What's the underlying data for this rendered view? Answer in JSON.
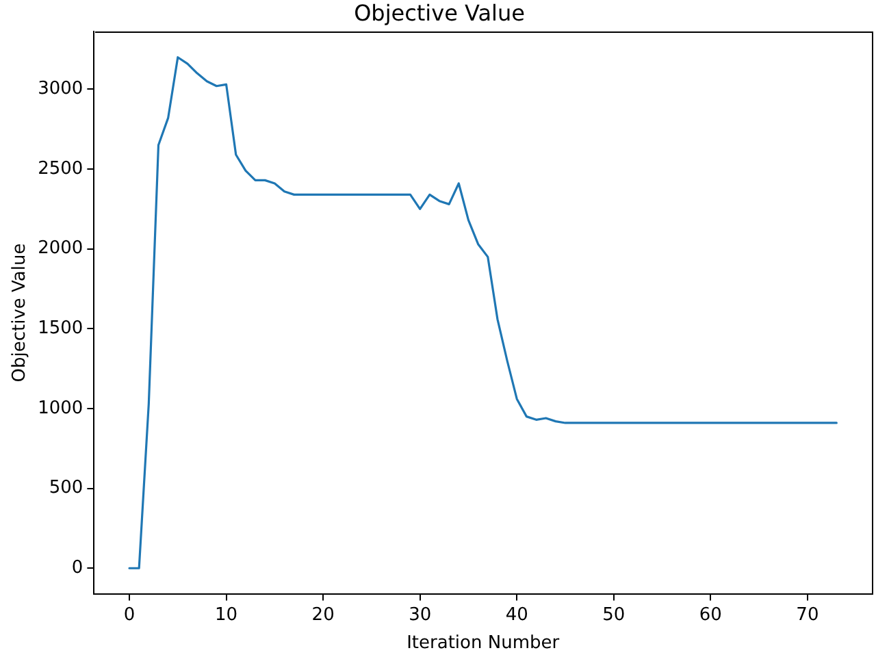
{
  "chart_data": {
    "type": "line",
    "title": "Objective Value",
    "xlabel": "Iteration Number",
    "ylabel": "Objective Value",
    "x": [
      0,
      1,
      2,
      3,
      4,
      5,
      6,
      7,
      8,
      9,
      10,
      11,
      12,
      13,
      14,
      15,
      16,
      17,
      18,
      19,
      20,
      21,
      22,
      23,
      24,
      25,
      26,
      27,
      28,
      29,
      30,
      31,
      32,
      33,
      34,
      35,
      36,
      37,
      38,
      39,
      40,
      41,
      42,
      43,
      44,
      45,
      46,
      47,
      48,
      49,
      50,
      51,
      52,
      53,
      54,
      55,
      56,
      57,
      58,
      59,
      60,
      61,
      62,
      63,
      64,
      65,
      66,
      67,
      68,
      69,
      70,
      71,
      72,
      73
    ],
    "values": [
      0,
      0,
      1030,
      2650,
      2820,
      3200,
      3160,
      3100,
      3050,
      3020,
      3030,
      2590,
      2490,
      2430,
      2430,
      2410,
      2360,
      2340,
      2340,
      2340,
      2340,
      2340,
      2340,
      2340,
      2340,
      2340,
      2340,
      2340,
      2340,
      2340,
      2250,
      2340,
      2300,
      2280,
      2410,
      2180,
      2030,
      1950,
      1560,
      1300,
      1060,
      950,
      930,
      940,
      920,
      910,
      910,
      910,
      910,
      910,
      910,
      910,
      910,
      910,
      910,
      910,
      910,
      910,
      910,
      910,
      910,
      910,
      910,
      910,
      910,
      910,
      910,
      910,
      910,
      910,
      910,
      910,
      910,
      910
    ],
    "color": "#1f77b4",
    "xlim": [
      -3.65,
      76.65
    ],
    "ylim": [
      -160,
      3360
    ],
    "xticks": [
      0,
      10,
      20,
      30,
      40,
      50,
      60,
      70
    ],
    "yticks": [
      0,
      500,
      1000,
      1500,
      2000,
      2500,
      3000
    ]
  }
}
